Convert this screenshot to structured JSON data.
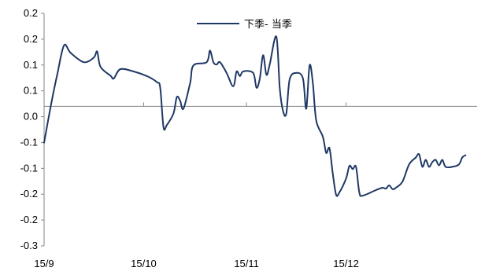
{
  "chart_data": {
    "type": "line",
    "title": "",
    "xlabel": "",
    "ylabel": "",
    "ylim": [
      -0.3,
      0.2
    ],
    "y_tick_labels": [
      "0.2",
      "0.2",
      "0.1",
      "0.1",
      "0.0",
      "-0.1",
      "-0.1",
      "-0.2",
      "-0.2",
      "-0.3"
    ],
    "y_tick_values": [
      0.2,
      0.15,
      0.1,
      0.05,
      0.0,
      -0.05,
      -0.1,
      -0.15,
      -0.2,
      -0.25
    ],
    "x_tick_labels": [
      "15/9",
      "15/10",
      "15/11",
      "15/12"
    ],
    "x_tick_dates": [
      "2015-09-01",
      "2015-10-01",
      "2015-11-01",
      "2015-12-01"
    ],
    "x_range": [
      "2015-09-01",
      "2015-12-31"
    ],
    "grid": false,
    "legend_position": "top",
    "series": [
      {
        "name": "下季- 当季",
        "color": "#1f3864",
        "points": [
          [
            "2015-09-01",
            -0.078
          ],
          [
            "2015-09-03",
            0.0
          ],
          [
            "2015-09-05",
            0.07
          ],
          [
            "2015-09-07",
            0.131
          ],
          [
            "2015-09-09",
            0.115
          ],
          [
            "2015-09-13",
            0.095
          ],
          [
            "2015-09-16",
            0.105
          ],
          [
            "2015-09-17",
            0.118
          ],
          [
            "2015-09-18",
            0.085
          ],
          [
            "2015-09-21",
            0.066
          ],
          [
            "2015-09-22",
            0.06
          ],
          [
            "2015-09-24",
            0.08
          ],
          [
            "2015-09-28",
            0.075
          ],
          [
            "2015-10-02",
            0.065
          ],
          [
            "2015-10-05",
            0.052
          ],
          [
            "2015-10-06",
            0.04
          ],
          [
            "2015-10-07",
            -0.045
          ],
          [
            "2015-10-08",
            -0.04
          ],
          [
            "2015-10-10",
            -0.015
          ],
          [
            "2015-10-11",
            0.02
          ],
          [
            "2015-10-12",
            0.012
          ],
          [
            "2015-10-13",
            -0.005
          ],
          [
            "2015-10-15",
            0.05
          ],
          [
            "2015-10-16",
            0.088
          ],
          [
            "2015-10-20",
            0.095
          ],
          [
            "2015-10-21",
            0.12
          ],
          [
            "2015-10-22",
            0.095
          ],
          [
            "2015-10-23",
            0.09
          ],
          [
            "2015-10-24",
            0.095
          ],
          [
            "2015-10-26",
            0.072
          ],
          [
            "2015-10-28",
            0.043
          ],
          [
            "2015-10-29",
            0.075
          ],
          [
            "2015-10-30",
            0.065
          ],
          [
            "2015-10-31",
            0.075
          ],
          [
            "2015-11-03",
            0.072
          ],
          [
            "2015-11-04",
            0.04
          ],
          [
            "2015-11-05",
            0.06
          ],
          [
            "2015-11-06",
            0.11
          ],
          [
            "2015-11-07",
            0.068
          ],
          [
            "2015-11-08",
            0.09
          ],
          [
            "2015-11-10",
            0.15
          ],
          [
            "2015-11-11",
            0.04
          ],
          [
            "2015-11-12",
            -0.01
          ],
          [
            "2015-11-13",
            -0.015
          ],
          [
            "2015-11-14",
            0.058
          ],
          [
            "2015-11-16",
            0.072
          ],
          [
            "2015-11-18",
            0.06
          ],
          [
            "2015-11-19",
            -0.005
          ],
          [
            "2015-11-20",
            0.088
          ],
          [
            "2015-11-21",
            0.05
          ],
          [
            "2015-11-22",
            -0.03
          ],
          [
            "2015-11-24",
            -0.065
          ],
          [
            "2015-11-25",
            -0.1
          ],
          [
            "2015-11-26",
            -0.09
          ],
          [
            "2015-11-27",
            -0.145
          ],
          [
            "2015-11-28",
            -0.19
          ],
          [
            "2015-11-29",
            -0.185
          ],
          [
            "2015-12-01",
            -0.155
          ],
          [
            "2015-12-02",
            -0.128
          ],
          [
            "2015-12-03",
            -0.135
          ],
          [
            "2015-12-04",
            -0.13
          ],
          [
            "2015-12-05",
            -0.185
          ],
          [
            "2015-12-06",
            -0.192
          ],
          [
            "2015-12-10",
            -0.18
          ],
          [
            "2015-12-12",
            -0.175
          ],
          [
            "2015-12-13",
            -0.177
          ],
          [
            "2015-12-14",
            -0.17
          ],
          [
            "2015-12-15",
            -0.178
          ],
          [
            "2015-12-16",
            -0.175
          ],
          [
            "2015-12-18",
            -0.162
          ],
          [
            "2015-12-20",
            -0.125
          ],
          [
            "2015-12-22",
            -0.11
          ],
          [
            "2015-12-23",
            -0.103
          ],
          [
            "2015-12-24",
            -0.13
          ],
          [
            "2015-12-25",
            -0.115
          ],
          [
            "2015-12-26",
            -0.13
          ],
          [
            "2015-12-27",
            -0.12
          ],
          [
            "2015-12-28",
            -0.115
          ],
          [
            "2015-12-29",
            -0.127
          ],
          [
            "2015-12-30",
            -0.115
          ],
          [
            "2015-12-31",
            -0.13
          ],
          [
            "2016-01-02",
            -0.13
          ],
          [
            "2016-01-04",
            -0.125
          ],
          [
            "2016-01-05",
            -0.11
          ],
          [
            "2016-01-06",
            -0.105
          ]
        ]
      }
    ]
  }
}
